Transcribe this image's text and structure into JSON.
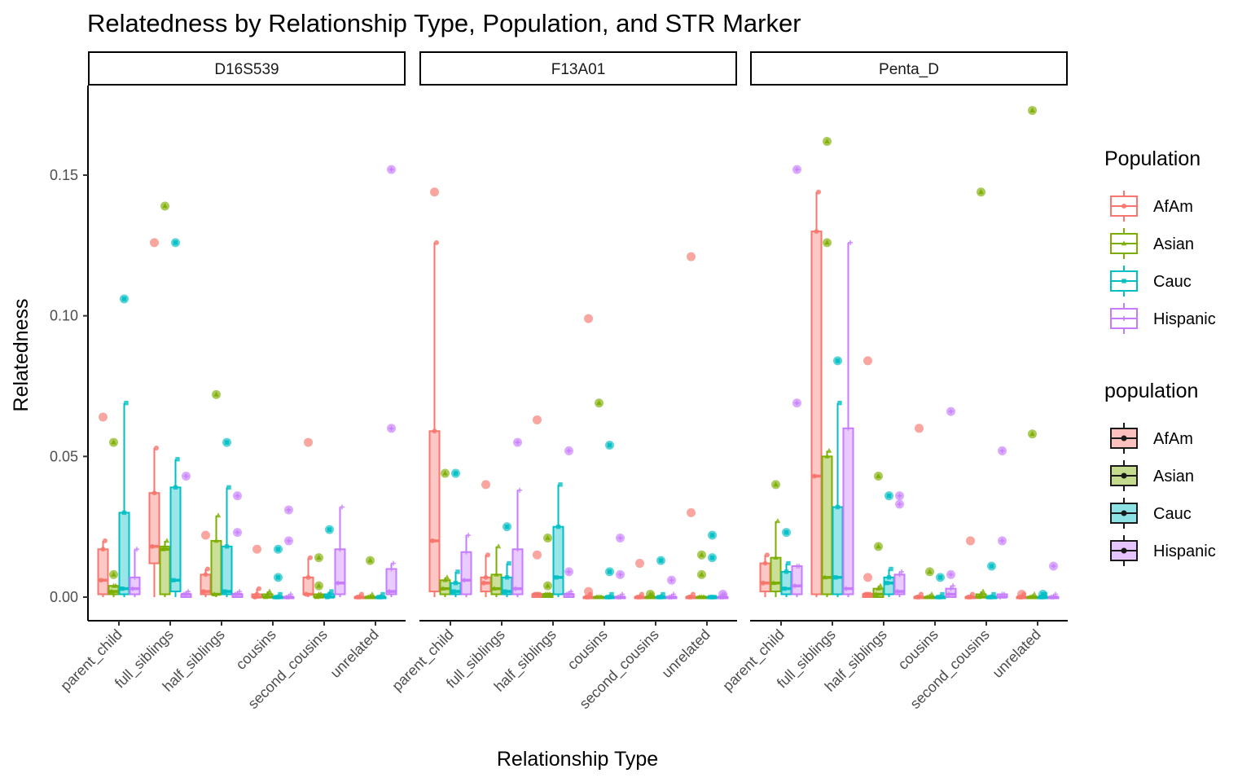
{
  "chart_data": {
    "type": "boxplot",
    "title": "Relatedness by Relationship Type, Population, and STR Marker",
    "xlabel": "Relationship Type",
    "ylabel": "Relatedness",
    "ylim": [
      -0.008,
      0.18
    ],
    "y_ticks": [
      0.0,
      0.05,
      0.1,
      0.15
    ],
    "y_tick_labels": [
      "0.00",
      "0.05",
      "0.10",
      "0.15"
    ],
    "categories": [
      "parent_child",
      "full_siblings",
      "half_siblings",
      "cousins",
      "second_cousins",
      "unrelated"
    ],
    "populations": [
      "AfAm",
      "Asian",
      "Cauc",
      "Hispanic"
    ],
    "colors": {
      "AfAm": "#F8766D",
      "Asian": "#7CAE00",
      "Cauc": "#00BFC4",
      "Hispanic": "#C77CFF"
    },
    "legend_color": {
      "title": "Population",
      "items": [
        "AfAm",
        "Asian",
        "Cauc",
        "Hispanic"
      ]
    },
    "legend_fill": {
      "title": "population",
      "items": [
        "AfAm",
        "Asian",
        "Cauc",
        "Hispanic"
      ]
    },
    "facets": [
      {
        "label": "D16S539",
        "boxes": {
          "AfAm": [
            [
              0.0,
              0.001,
              0.006,
              0.017,
              0.02
            ],
            [
              0.0,
              0.012,
              0.018,
              0.037,
              0.053
            ],
            [
              0.0,
              0.001,
              0.002,
              0.008,
              0.01
            ],
            [
              0.0,
              0.0,
              0.0,
              0.001,
              0.003
            ],
            [
              0.0,
              0.001,
              0.001,
              0.007,
              0.014
            ],
            [
              0.0,
              0.0,
              0.0,
              0.0,
              0.001
            ]
          ],
          "Asian": [
            [
              0.0,
              0.001,
              0.002,
              0.004,
              0.004
            ],
            [
              0.0,
              0.001,
              0.017,
              0.018,
              0.02
            ],
            [
              0.0,
              0.001,
              0.001,
              0.02,
              0.029
            ],
            [
              0.0,
              0.0,
              0.0,
              0.001,
              0.002
            ],
            [
              0.0,
              0.0,
              0.0,
              0.001,
              0.001
            ],
            [
              0.0,
              0.0,
              0.0,
              0.0,
              0.001
            ]
          ],
          "Cauc": [
            [
              0.0,
              0.001,
              0.003,
              0.03,
              0.069
            ],
            [
              0.0,
              0.002,
              0.006,
              0.039,
              0.049
            ],
            [
              0.0,
              0.001,
              0.002,
              0.018,
              0.039
            ],
            [
              0.0,
              0.0,
              0.0,
              0.0,
              0.001
            ],
            [
              0.0,
              0.0,
              0.0,
              0.001,
              0.002
            ],
            [
              0.0,
              0.0,
              0.0,
              0.0,
              0.001
            ]
          ],
          "Hispanic": [
            [
              0.0,
              0.001,
              0.003,
              0.007,
              0.017
            ],
            [
              0.0,
              0.0,
              0.001,
              0.001,
              0.002
            ],
            [
              0.0,
              0.0,
              0.001,
              0.001,
              0.002
            ],
            [
              0.0,
              0.0,
              0.0,
              0.0,
              0.001
            ],
            [
              0.0,
              0.001,
              0.005,
              0.017,
              0.032
            ],
            [
              0.0,
              0.001,
              0.002,
              0.01,
              0.012
            ]
          ]
        },
        "outliers": {
          "AfAm": [
            [
              0.064
            ],
            [
              0.126
            ],
            [
              0.022
            ],
            [
              0.017
            ],
            [
              0.055
            ],
            []
          ],
          "Asian": [
            [
              0.008,
              0.055
            ],
            [
              0.139
            ],
            [
              0.072
            ],
            [],
            [
              0.004,
              0.014
            ],
            [
              0.013
            ]
          ],
          "Cauc": [
            [
              0.106
            ],
            [
              0.126
            ],
            [
              0.055
            ],
            [
              0.007,
              0.017
            ],
            [
              0.024
            ],
            []
          ],
          "Hispanic": [
            [],
            [
              0.043
            ],
            [
              0.023,
              0.036
            ],
            [
              0.02,
              0.031
            ],
            [],
            [
              0.06,
              0.152
            ]
          ]
        }
      },
      {
        "label": "F13A01",
        "boxes": {
          "AfAm": [
            [
              0.0,
              0.002,
              0.02,
              0.059,
              0.126
            ],
            [
              0.0,
              0.002,
              0.005,
              0.007,
              0.015
            ],
            [
              0.0,
              0.0,
              0.001,
              0.001,
              0.001
            ],
            [
              0.0,
              0.0,
              0.0,
              0.0,
              0.001
            ],
            [
              0.0,
              0.0,
              0.0,
              0.0,
              0.001
            ],
            [
              0.0,
              0.0,
              0.0,
              0.0,
              0.001
            ]
          ],
          "Asian": [
            [
              0.0,
              0.001,
              0.003,
              0.006,
              0.007
            ],
            [
              0.0,
              0.001,
              0.003,
              0.008,
              0.018
            ],
            [
              0.0,
              0.0,
              0.001,
              0.001,
              0.001
            ],
            [
              0.0,
              0.0,
              0.0,
              0.0,
              0.0
            ],
            [
              0.0,
              0.0,
              0.0,
              0.0,
              0.001
            ],
            [
              0.0,
              0.0,
              0.0,
              0.0,
              0.0
            ]
          ],
          "Cauc": [
            [
              0.0,
              0.001,
              0.002,
              0.005,
              0.009
            ],
            [
              0.0,
              0.001,
              0.002,
              0.007,
              0.012
            ],
            [
              0.0,
              0.001,
              0.007,
              0.025,
              0.04
            ],
            [
              0.0,
              0.0,
              0.0,
              0.0,
              0.001
            ],
            [
              0.0,
              0.0,
              0.0,
              0.0,
              0.001
            ],
            [
              0.0,
              0.0,
              0.0,
              0.0,
              0.0
            ]
          ],
          "Hispanic": [
            [
              0.0,
              0.001,
              0.006,
              0.016,
              0.022
            ],
            [
              0.0,
              0.001,
              0.003,
              0.017,
              0.038
            ],
            [
              0.0,
              0.0,
              0.001,
              0.001,
              0.002
            ],
            [
              0.0,
              0.0,
              0.0,
              0.0,
              0.001
            ],
            [
              0.0,
              0.0,
              0.0,
              0.0,
              0.001
            ],
            [
              0.0,
              0.0,
              0.0,
              0.0,
              0.001
            ]
          ]
        },
        "outliers": {
          "AfAm": [
            [
              0.144
            ],
            [
              0.04
            ],
            [
              0.015,
              0.063
            ],
            [
              0.002,
              0.099
            ],
            [
              0.012
            ],
            [
              0.03,
              0.121
            ]
          ],
          "Asian": [
            [
              0.044
            ],
            [],
            [
              0.004,
              0.021
            ],
            [
              0.069
            ],
            [
              0.001
            ],
            [
              0.008,
              0.015
            ]
          ],
          "Cauc": [
            [
              0.044
            ],
            [
              0.025
            ],
            [],
            [
              0.009,
              0.054
            ],
            [
              0.013
            ],
            [
              0.014,
              0.022
            ]
          ],
          "Hispanic": [
            [],
            [
              0.055
            ],
            [
              0.009,
              0.052
            ],
            [
              0.008,
              0.021
            ],
            [
              0.006
            ],
            [
              0.001
            ]
          ]
        }
      },
      {
        "label": "Penta_D",
        "boxes": {
          "AfAm": [
            [
              0.0,
              0.002,
              0.005,
              0.012,
              0.015
            ],
            [
              0.0,
              0.001,
              0.043,
              0.13,
              0.144
            ],
            [
              0.0,
              0.0,
              0.001,
              0.001,
              0.001
            ],
            [
              0.0,
              0.0,
              0.0,
              0.0,
              0.001
            ],
            [
              0.0,
              0.0,
              0.0,
              0.0,
              0.001
            ],
            [
              0.0,
              0.0,
              0.0,
              0.0,
              0.001
            ]
          ],
          "Asian": [
            [
              0.0,
              0.002,
              0.005,
              0.014,
              0.027
            ],
            [
              0.0,
              0.001,
              0.007,
              0.05,
              0.052
            ],
            [
              0.0,
              0.0,
              0.001,
              0.003,
              0.004
            ],
            [
              0.0,
              0.0,
              0.0,
              0.0,
              0.001
            ],
            [
              0.0,
              0.0,
              0.0,
              0.001,
              0.002
            ],
            [
              0.0,
              0.0,
              0.0,
              0.0,
              0.001
            ]
          ],
          "Cauc": [
            [
              0.0,
              0.001,
              0.003,
              0.009,
              0.012
            ],
            [
              0.0,
              0.001,
              0.007,
              0.032,
              0.069
            ],
            [
              0.0,
              0.001,
              0.005,
              0.007,
              0.01
            ],
            [
              0.0,
              0.0,
              0.0,
              0.0,
              0.001
            ],
            [
              0.0,
              0.0,
              0.0,
              0.0,
              0.001
            ],
            [
              0.0,
              0.0,
              0.0,
              0.0,
              0.001
            ]
          ],
          "Hispanic": [
            [
              0.0,
              0.001,
              0.004,
              0.011,
              0.011
            ],
            [
              0.0,
              0.001,
              0.003,
              0.06,
              0.126
            ],
            [
              0.0,
              0.001,
              0.002,
              0.008,
              0.009
            ],
            [
              0.0,
              0.0,
              0.001,
              0.003,
              0.004
            ],
            [
              0.0,
              0.0,
              0.0,
              0.001,
              0.001
            ],
            [
              0.0,
              0.0,
              0.0,
              0.0,
              0.001
            ]
          ]
        },
        "outliers": {
          "AfAm": [
            [],
            [],
            [
              0.007,
              0.084
            ],
            [
              0.06
            ],
            [
              0.02
            ],
            [
              0.001
            ]
          ],
          "Asian": [
            [
              0.04
            ],
            [
              0.126,
              0.162
            ],
            [
              0.018,
              0.043
            ],
            [
              0.009
            ],
            [
              0.144
            ],
            [
              0.058,
              0.173
            ]
          ],
          "Cauc": [
            [
              0.023
            ],
            [
              0.084
            ],
            [
              0.036
            ],
            [
              0.007
            ],
            [
              0.011
            ],
            [
              0.001
            ]
          ],
          "Hispanic": [
            [
              0.069,
              0.152
            ],
            [],
            [
              0.033,
              0.036
            ],
            [
              0.008,
              0.066
            ],
            [
              0.02,
              0.052
            ],
            [
              0.011
            ]
          ]
        }
      }
    ]
  }
}
